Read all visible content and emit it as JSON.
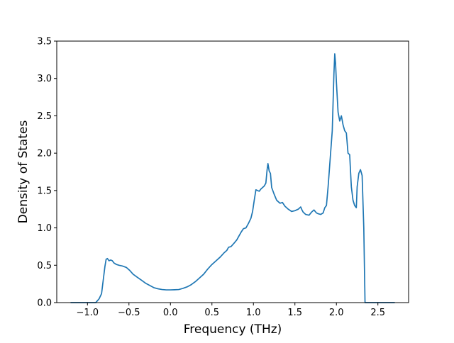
{
  "chart_data": {
    "type": "line",
    "title": "",
    "xlabel": "Frequency (THz)",
    "ylabel": "Density of States",
    "xlim": [
      -1.37,
      2.87
    ],
    "ylim": [
      0,
      3.5
    ],
    "grid": false,
    "xticks": [
      -1.0,
      -0.5,
      0.0,
      0.5,
      1.0,
      1.5,
      2.0,
      2.5
    ],
    "xtick_labels": [
      "−1.0",
      "−0.5",
      "0.0",
      "0.5",
      "1.0",
      "1.5",
      "2.0",
      "2.5"
    ],
    "yticks": [
      0.0,
      0.5,
      1.0,
      1.5,
      2.0,
      2.5,
      3.0,
      3.5
    ],
    "ytick_labels": [
      "0.0",
      "0.5",
      "1.0",
      "1.5",
      "2.0",
      "2.5",
      "3.0",
      "3.5"
    ],
    "series": [
      {
        "color": "#1f77b4",
        "x": [
          -1.2,
          -0.98,
          -0.9,
          -0.86,
          -0.83,
          -0.81,
          -0.79,
          -0.775,
          -0.76,
          -0.74,
          -0.72,
          -0.7,
          -0.68,
          -0.65,
          -0.62,
          -0.58,
          -0.53,
          -0.49,
          -0.45,
          -0.4,
          -0.35,
          -0.3,
          -0.25,
          -0.2,
          -0.15,
          -0.1,
          -0.05,
          0.0,
          0.05,
          0.1,
          0.15,
          0.2,
          0.25,
          0.3,
          0.35,
          0.4,
          0.45,
          0.5,
          0.55,
          0.6,
          0.65,
          0.68,
          0.7,
          0.73,
          0.77,
          0.8,
          0.82,
          0.85,
          0.88,
          0.91,
          0.94,
          0.97,
          0.99,
          1.01,
          1.03,
          1.05,
          1.07,
          1.09,
          1.11,
          1.13,
          1.15,
          1.165,
          1.175,
          1.19,
          1.205,
          1.22,
          1.25,
          1.28,
          1.32,
          1.35,
          1.38,
          1.42,
          1.46,
          1.5,
          1.54,
          1.57,
          1.585,
          1.6,
          1.63,
          1.67,
          1.7,
          1.73,
          1.76,
          1.78,
          1.81,
          1.84,
          1.86,
          1.88,
          1.9,
          1.92,
          1.95,
          1.97,
          1.98,
          1.99,
          2.0,
          2.02,
          2.04,
          2.06,
          2.08,
          2.1,
          2.12,
          2.14,
          2.16,
          2.18,
          2.2,
          2.22,
          2.24,
          2.25,
          2.27,
          2.29,
          2.31,
          2.33,
          2.345,
          2.35,
          2.38,
          2.5,
          2.7
        ],
        "y": [
          0.0,
          0.0,
          0.0,
          0.05,
          0.12,
          0.3,
          0.48,
          0.58,
          0.59,
          0.56,
          0.57,
          0.56,
          0.53,
          0.51,
          0.5,
          0.49,
          0.47,
          0.43,
          0.38,
          0.34,
          0.3,
          0.26,
          0.23,
          0.2,
          0.185,
          0.175,
          0.17,
          0.17,
          0.172,
          0.175,
          0.19,
          0.21,
          0.24,
          0.28,
          0.33,
          0.38,
          0.45,
          0.51,
          0.56,
          0.61,
          0.67,
          0.7,
          0.74,
          0.75,
          0.8,
          0.84,
          0.88,
          0.94,
          0.99,
          1.0,
          1.06,
          1.13,
          1.22,
          1.37,
          1.51,
          1.5,
          1.49,
          1.52,
          1.54,
          1.56,
          1.6,
          1.78,
          1.86,
          1.76,
          1.73,
          1.54,
          1.45,
          1.37,
          1.33,
          1.34,
          1.29,
          1.25,
          1.22,
          1.23,
          1.25,
          1.28,
          1.24,
          1.21,
          1.18,
          1.17,
          1.21,
          1.24,
          1.2,
          1.19,
          1.18,
          1.2,
          1.27,
          1.3,
          1.55,
          1.85,
          2.3,
          3.06,
          3.33,
          3.2,
          2.95,
          2.55,
          2.43,
          2.5,
          2.38,
          2.3,
          2.27,
          2.0,
          1.98,
          1.55,
          1.37,
          1.3,
          1.27,
          1.55,
          1.73,
          1.78,
          1.7,
          1.0,
          0.0,
          0.0,
          0.0,
          0.0,
          0.0
        ]
      }
    ]
  }
}
